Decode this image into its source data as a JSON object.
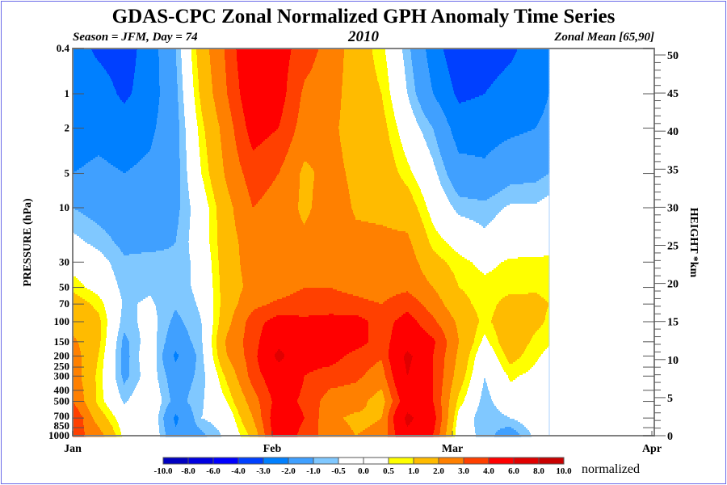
{
  "title": "GDAS-CPC Zonal Normalized GPH Anomaly Time Series",
  "subtitle_left": "Season = JFM, Day =  74",
  "subtitle_center": "2010",
  "subtitle_right": "Zonal Mean [65,90]",
  "colorbar_unit": "normalized",
  "chart_data": {
    "type": "heatmap",
    "subtype": "filled-contour",
    "ylabel": "PRESSURE (hPa)",
    "y2label": "HEIGHT *km",
    "yscale": "log",
    "ylim": [
      1000,
      0.4
    ],
    "y2lim": [
      0,
      50
    ],
    "y_ticks": [
      "0.4",
      "1",
      "2",
      "5",
      "10",
      "30",
      "50",
      "70",
      "100",
      "150",
      "200",
      "250",
      "300",
      "400",
      "500",
      "700",
      "850",
      "1000"
    ],
    "y2_ticks": [
      "0",
      "5",
      "10",
      "15",
      "20",
      "25",
      "30",
      "35",
      "40",
      "45",
      "50"
    ],
    "x_ticks": [
      "Jan",
      "Feb",
      "Mar",
      "Apr"
    ],
    "x_tick_dates": [
      "2010-01-01",
      "2010-02-01",
      "2010-03-01",
      "2010-04-01"
    ],
    "xlim": [
      "2010-01-01",
      "2010-04-01"
    ],
    "colorbar_levels": [
      "-10.0",
      "-8.0",
      "-6.0",
      "-4.0",
      "-3.0",
      "-2.0",
      "-1.0",
      "-0.5",
      "0.0",
      "0.5",
      "1.0",
      "2.0",
      "3.0",
      "4.0",
      "6.0",
      "8.0",
      "10.0"
    ],
    "colors": [
      "#0000c0",
      "#0000e0",
      "#0000ff",
      "#0040ff",
      "#0080ff",
      "#40a0ff",
      "#80c8ff",
      "#ffffff",
      "#ffffff",
      "#ffff00",
      "#ffbb00",
      "#ff8000",
      "#ff4000",
      "#ff0000",
      "#e00000",
      "#c80000"
    ],
    "pressure_levels": [
      0.4,
      1,
      2,
      5,
      10,
      20,
      30,
      50,
      70,
      100,
      150,
      200,
      300,
      500,
      700,
      1000
    ],
    "dates": [
      "2010-01-01",
      "2010-01-05",
      "2010-01-09",
      "2010-01-13",
      "2010-01-17",
      "2010-01-21",
      "2010-01-25",
      "2010-01-29",
      "2010-02-02",
      "2010-02-06",
      "2010-02-10",
      "2010-02-14",
      "2010-02-18",
      "2010-02-22",
      "2010-02-26",
      "2010-03-02",
      "2010-03-06",
      "2010-03-10",
      "2010-03-14",
      "2010-03-16"
    ],
    "values": [
      [
        -2.5,
        -2.5,
        -2.5,
        -2.0,
        -1.0,
        -0.3,
        0.2,
        0.8,
        1.5,
        1.6,
        2.2,
        2.5,
        2.6,
        3.0,
        4.0,
        3.5
      ],
      [
        -3.2,
        -2.5,
        -2.3,
        -1.8,
        -1.3,
        -0.7,
        -0.2,
        0.2,
        0.8,
        1.2,
        1.2,
        1.0,
        0.8,
        0.8,
        1.5,
        2.5
      ],
      [
        -3.5,
        -3.2,
        -2.5,
        -2.0,
        -1.5,
        -1.2,
        -0.9,
        -0.7,
        -0.6,
        -0.8,
        -1.2,
        -1.3,
        -1.2,
        -0.6,
        0.0,
        0.3
      ],
      [
        -2.5,
        -2.5,
        -2.2,
        -1.8,
        -1.6,
        -1.2,
        -0.8,
        -0.6,
        -0.4,
        -0.2,
        -0.1,
        0.1,
        -0.1,
        0.2,
        0.3,
        0.3
      ],
      [
        -1.0,
        -1.2,
        -1.3,
        -1.3,
        -1.2,
        -1.0,
        -0.9,
        -0.8,
        -0.9,
        -1.2,
        -1.6,
        -2.2,
        -1.5,
        -1.3,
        -2.2,
        -1.8
      ],
      [
        1.5,
        1.2,
        0.8,
        0.5,
        0.0,
        0.0,
        -0.2,
        -0.3,
        -0.4,
        -0.5,
        -0.6,
        -0.7,
        -0.8,
        -0.6,
        -0.5,
        -1.2
      ],
      [
        3.2,
        3.0,
        2.5,
        2.2,
        1.7,
        1.6,
        1.6,
        1.5,
        1.5,
        1.7,
        2.2,
        2.0,
        1.2,
        0.5,
        -0.1,
        -0.3
      ],
      [
        5.5,
        5.0,
        4.5,
        3.5,
        3.0,
        2.5,
        2.4,
        2.3,
        2.7,
        3.5,
        3.5,
        3.5,
        3.4,
        2.5,
        2.0,
        1.2
      ],
      [
        4.5,
        4.5,
        4.0,
        3.0,
        2.6,
        2.4,
        2.3,
        2.5,
        3.2,
        4.5,
        5.5,
        6.5,
        5.0,
        4.5,
        5.0,
        5.0
      ],
      [
        3.5,
        2.8,
        2.5,
        1.8,
        1.8,
        2.2,
        2.5,
        3.0,
        3.5,
        4.2,
        5.0,
        4.5,
        4.0,
        3.8,
        4.0,
        3.6
      ],
      [
        2.6,
        2.4,
        2.2,
        2.3,
        2.5,
        2.6,
        2.8,
        3.0,
        3.3,
        4.5,
        5.0,
        4.5,
        3.5,
        2.5,
        2.2,
        2.5
      ],
      [
        1.5,
        1.5,
        1.6,
        1.8,
        1.9,
        2.2,
        2.6,
        2.8,
        3.2,
        4.5,
        4.5,
        3.6,
        3.2,
        2.4,
        1.8,
        2.0
      ],
      [
        0.7,
        1.0,
        1.3,
        1.6,
        1.8,
        2.2,
        2.4,
        2.6,
        3.0,
        3.5,
        3.5,
        3.1,
        2.5,
        1.5,
        2.0,
        2.2
      ],
      [
        -0.8,
        -0.5,
        0.0,
        0.7,
        1.5,
        2.2,
        2.5,
        2.8,
        3.6,
        4.5,
        5.0,
        6.5,
        6.0,
        5.0,
        6.5,
        5.5
      ],
      [
        -2.5,
        -2.0,
        -1.0,
        -0.3,
        0.2,
        0.8,
        1.3,
        2.0,
        2.5,
        3.2,
        4.2,
        4.0,
        4.0,
        4.0,
        4.5,
        4.0
      ],
      [
        -3.8,
        -3.2,
        -2.5,
        -1.6,
        -0.7,
        0.2,
        0.7,
        1.0,
        1.3,
        1.8,
        2.0,
        1.8,
        1.5,
        0.8,
        0.2,
        -0.1
      ],
      [
        -3.5,
        -3.0,
        -2.4,
        -1.8,
        -0.8,
        -0.3,
        0.3,
        0.7,
        0.7,
        0.8,
        0.3,
        -0.2,
        -0.5,
        -0.8,
        -1.0,
        -0.7
      ],
      [
        -3.2,
        -2.6,
        -2.2,
        -1.3,
        -0.4,
        0.1,
        0.6,
        0.8,
        1.3,
        1.6,
        1.6,
        1.3,
        0.6,
        0.2,
        -0.5,
        -1.5
      ],
      [
        -2.5,
        -2.3,
        -2.0,
        -1.2,
        -0.4,
        0.2,
        0.6,
        0.9,
        1.2,
        1.2,
        0.8,
        0.6,
        0.3,
        0.2,
        0.0,
        -0.3
      ],
      [
        -2.2,
        -2.0,
        -1.8,
        -1.0,
        -0.2,
        0.3,
        0.6,
        0.8,
        1.0,
        0.9,
        0.6,
        0.3,
        0.1,
        0.1,
        0.0,
        -0.3
      ]
    ],
    "grid": false,
    "legend": "bottom colorbar"
  }
}
